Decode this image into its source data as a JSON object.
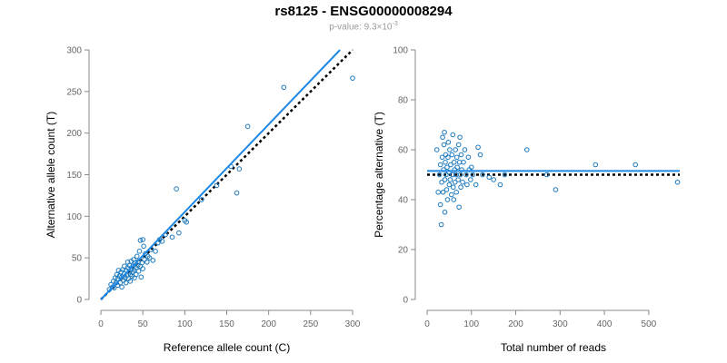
{
  "header": {
    "title": "rs8125 - ENSG00000008294",
    "pvalue_prefix": "p-value: 9.3×10",
    "pvalue_exponent": "-3"
  },
  "colors": {
    "points": "#1f7bbf",
    "fit_line": "#1e88e5",
    "reference_line": "#000000",
    "axis": "#888888",
    "tick_text": "#666666"
  },
  "chart_data": [
    {
      "type": "scatter",
      "title": "",
      "xlabel": "Reference allele count (C)",
      "ylabel": "Alternative allele count (T)",
      "xlim": [
        0,
        300
      ],
      "ylim": [
        0,
        300
      ],
      "xticks": [
        0,
        50,
        100,
        150,
        200,
        250,
        300
      ],
      "yticks": [
        0,
        50,
        100,
        150,
        200,
        250,
        300
      ],
      "grid": false,
      "fit_line": {
        "x": [
          0,
          285
        ],
        "y": [
          0,
          300
        ]
      },
      "reference_line": {
        "x": [
          0,
          300
        ],
        "y": [
          0,
          300
        ]
      },
      "points": [
        [
          10,
          12
        ],
        [
          12,
          18
        ],
        [
          14,
          15
        ],
        [
          15,
          22
        ],
        [
          16,
          14
        ],
        [
          17,
          26
        ],
        [
          18,
          20
        ],
        [
          19,
          30
        ],
        [
          20,
          17
        ],
        [
          20,
          25
        ],
        [
          21,
          35
        ],
        [
          22,
          28
        ],
        [
          23,
          20
        ],
        [
          24,
          33
        ],
        [
          25,
          15
        ],
        [
          25,
          27
        ],
        [
          26,
          36
        ],
        [
          27,
          23
        ],
        [
          28,
          31
        ],
        [
          28,
          40
        ],
        [
          29,
          26
        ],
        [
          30,
          35
        ],
        [
          30,
          20
        ],
        [
          31,
          29
        ],
        [
          32,
          38
        ],
        [
          32,
          45
        ],
        [
          33,
          25
        ],
        [
          34,
          33
        ],
        [
          34,
          41
        ],
        [
          35,
          30
        ],
        [
          35,
          22
        ],
        [
          36,
          36
        ],
        [
          36,
          46
        ],
        [
          37,
          28
        ],
        [
          38,
          40
        ],
        [
          38,
          33
        ],
        [
          39,
          48
        ],
        [
          40,
          35
        ],
        [
          40,
          26
        ],
        [
          41,
          44
        ],
        [
          42,
          38
        ],
        [
          42,
          30
        ],
        [
          43,
          52
        ],
        [
          44,
          41
        ],
        [
          45,
          34
        ],
        [
          45,
          46
        ],
        [
          46,
          58
        ],
        [
          47,
          40
        ],
        [
          47,
          71
        ],
        [
          48,
          27
        ],
        [
          49,
          44
        ],
        [
          50,
          72
        ],
        [
          50,
          37
        ],
        [
          51,
          64
        ],
        [
          52,
          48
        ],
        [
          53,
          55
        ],
        [
          55,
          45
        ],
        [
          56,
          52
        ],
        [
          58,
          50
        ],
        [
          60,
          60
        ],
        [
          62,
          47
        ],
        [
          65,
          58
        ],
        [
          68,
          68
        ],
        [
          70,
          72
        ],
        [
          73,
          70
        ],
        [
          77,
          78
        ],
        [
          85,
          75
        ],
        [
          90,
          133
        ],
        [
          93,
          80
        ],
        [
          100,
          95
        ],
        [
          102,
          93
        ],
        [
          120,
          120
        ],
        [
          138,
          137
        ],
        [
          155,
          160
        ],
        [
          162,
          128
        ],
        [
          165,
          157
        ],
        [
          175,
          208
        ],
        [
          218,
          255
        ],
        [
          300,
          266
        ]
      ]
    },
    {
      "type": "scatter",
      "title": "",
      "xlabel": "Total number of reads",
      "ylabel": "Percentage alternative (T)",
      "xlim": [
        0,
        570
      ],
      "ylim": [
        0,
        100
      ],
      "xticks": [
        0,
        100,
        200,
        300,
        400,
        500
      ],
      "yticks": [
        0,
        20,
        40,
        60,
        80,
        100
      ],
      "grid": false,
      "fit_line": {
        "x": [
          0,
          570
        ],
        "y": [
          51.5,
          51.5
        ]
      },
      "reference_line": {
        "x": [
          0,
          570
        ],
        "y": [
          50,
          50
        ]
      },
      "points": [
        [
          22,
          60
        ],
        [
          25,
          43
        ],
        [
          28,
          50
        ],
        [
          30,
          38
        ],
        [
          30,
          54
        ],
        [
          32,
          30
        ],
        [
          33,
          47
        ],
        [
          34,
          57
        ],
        [
          35,
          65
        ],
        [
          36,
          43
        ],
        [
          37,
          52
        ],
        [
          38,
          62
        ],
        [
          39,
          67
        ],
        [
          40,
          35
        ],
        [
          40,
          48
        ],
        [
          41,
          55
        ],
        [
          42,
          58
        ],
        [
          43,
          50
        ],
        [
          44,
          44
        ],
        [
          45,
          53
        ],
        [
          46,
          40
        ],
        [
          47,
          57
        ],
        [
          48,
          63
        ],
        [
          49,
          51
        ],
        [
          50,
          46
        ],
        [
          51,
          60
        ],
        [
          52,
          48
        ],
        [
          53,
          54
        ],
        [
          55,
          42
        ],
        [
          56,
          58
        ],
        [
          57,
          50
        ],
        [
          58,
          66
        ],
        [
          59,
          45
        ],
        [
          60,
          40
        ],
        [
          61,
          55
        ],
        [
          62,
          52
        ],
        [
          63,
          47
        ],
        [
          64,
          60
        ],
        [
          65,
          50
        ],
        [
          66,
          43
        ],
        [
          67,
          57
        ],
        [
          68,
          53
        ],
        [
          70,
          48
        ],
        [
          71,
          62
        ],
        [
          72,
          37
        ],
        [
          73,
          55
        ],
        [
          74,
          65
        ],
        [
          75,
          50
        ],
        [
          76,
          45
        ],
        [
          77,
          58
        ],
        [
          78,
          52
        ],
        [
          80,
          47
        ],
        [
          82,
          55
        ],
        [
          85,
          60
        ],
        [
          88,
          50
        ],
        [
          90,
          46
        ],
        [
          93,
          57
        ],
        [
          95,
          52
        ],
        [
          98,
          48
        ],
        [
          100,
          53
        ],
        [
          103,
          50
        ],
        [
          110,
          46
        ],
        [
          115,
          61
        ],
        [
          120,
          58
        ],
        [
          125,
          50
        ],
        [
          140,
          49
        ],
        [
          150,
          48
        ],
        [
          165,
          46
        ],
        [
          175,
          50
        ],
        [
          225,
          60
        ],
        [
          270,
          50
        ],
        [
          290,
          44
        ],
        [
          380,
          54
        ],
        [
          470,
          54
        ],
        [
          565,
          47
        ]
      ]
    }
  ]
}
